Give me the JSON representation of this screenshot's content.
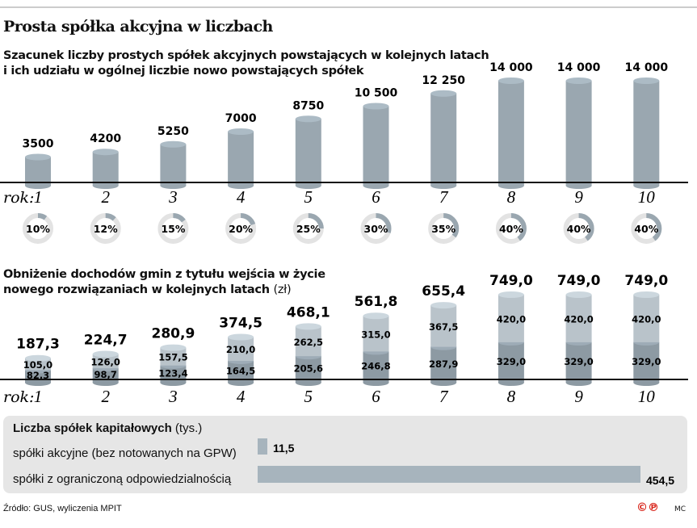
{
  "title": "Prosta spółka akcyjna w liczbach",
  "chart_data": [
    {
      "type": "bar",
      "subtitle_lines": [
        "Szacunek liczby prostych spółek akcyjnych powstających w kolejnych latach",
        "i ich udziału w ogólnej liczbie nowo powstających spółek"
      ],
      "xlabel": "rok:",
      "categories": [
        "1",
        "2",
        "3",
        "4",
        "5",
        "6",
        "7",
        "8",
        "9",
        "10"
      ],
      "values": [
        3500,
        4200,
        5250,
        7000,
        8750,
        10500,
        12250,
        14000,
        14000,
        14000
      ],
      "value_labels": [
        "3500",
        "4200",
        "5250",
        "7000",
        "8750",
        "10 500",
        "12 250",
        "14 000",
        "14 000",
        "14 000"
      ],
      "share_percent": [
        10,
        12,
        15,
        20,
        25,
        30,
        35,
        40,
        40,
        40
      ],
      "share_labels": [
        "10%",
        "12%",
        "15%",
        "20%",
        "25%",
        "30%",
        "35%",
        "40%",
        "40%",
        "40%"
      ],
      "color": "#9aa7b0"
    },
    {
      "type": "stacked-bar",
      "subtitle_lines": [
        "Obniżenie dochodów gmin z tytułu wejścia w życie",
        "nowego rozwiązaniach w kolejnych latach"
      ],
      "unit": "(zł)",
      "xlabel": "rok:",
      "categories": [
        "1",
        "2",
        "3",
        "4",
        "5",
        "6",
        "7",
        "8",
        "9",
        "10"
      ],
      "totals": [
        "187,3",
        "224,7",
        "280,9",
        "374,5",
        "468,1",
        "561,8",
        "655,4",
        "749,0",
        "749,0",
        "749,0"
      ],
      "series": [
        {
          "values": [
            82.3,
            98.7,
            123.4,
            164.5,
            205.6,
            246.8,
            287.9,
            329.0,
            329.0,
            329.0
          ],
          "labels": [
            "82,3",
            "98,7",
            "123,4",
            "164,5",
            "205,6",
            "246,8",
            "287,9",
            "329,0",
            "329,0",
            "329,0"
          ],
          "color": "#8d9aa3"
        },
        {
          "values": [
            105.0,
            126.0,
            157.5,
            210.0,
            262.5,
            315.0,
            367.5,
            420.0,
            420.0,
            420.0
          ],
          "labels": [
            "105,0",
            "126,0",
            "157,5",
            "210,0",
            "262,5",
            "315,0",
            "367,5",
            "420,0",
            "420,0",
            "420,0"
          ],
          "color": "#b9c3ca"
        }
      ]
    },
    {
      "type": "bar",
      "orientation": "horizontal",
      "title": "Liczba spółek kapitałowych",
      "unit": "(tys.)",
      "categories": [
        "spółki akcyjne (bez notowanych na GPW)",
        "spółki z ograniczoną odpowiedzialnością"
      ],
      "values": [
        11.5,
        454.5
      ],
      "value_labels": [
        "11,5",
        "454,5"
      ],
      "color": "#a7b4bd"
    }
  ],
  "source": "Źródło: GUS, wyliczenia MPIT",
  "logo": "©℗",
  "credit": "MC"
}
